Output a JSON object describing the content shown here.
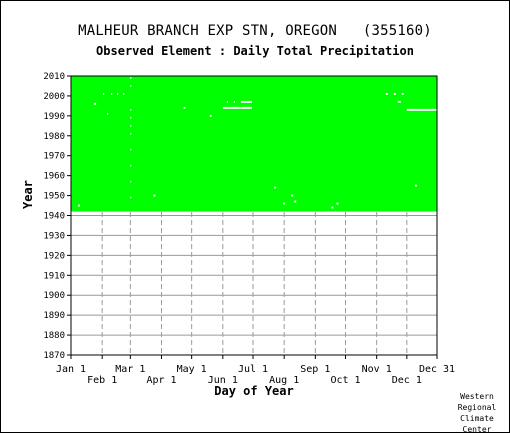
{
  "title": "MALHEUR BRANCH EXP STN, OREGON   (355160)",
  "subtitle": "Observed Element : Daily Total Precipitation",
  "credit": [
    "Western",
    "Regional",
    "Climate",
    "Center"
  ],
  "colors": {
    "data_fill": "#00ff00",
    "missing": "#ffffff",
    "grid": "#999999",
    "axis": "#000000",
    "background": "#ffffff"
  },
  "chart_data": {
    "type": "heatmap",
    "title": "MALHEUR BRANCH EXP STN, OREGON   (355160)",
    "subtitle": "Observed Element : Daily Total Precipitation",
    "xlabel": "Day of Year",
    "ylabel": "Year",
    "xlim": [
      1,
      365
    ],
    "ylim": [
      1870,
      2010
    ],
    "yticks": [
      1870,
      1880,
      1890,
      1900,
      1910,
      1920,
      1930,
      1940,
      1950,
      1960,
      1970,
      1980,
      1990,
      2000,
      2010
    ],
    "xticks": [
      {
        "label": "Jan 1",
        "day": 1,
        "row": "top"
      },
      {
        "label": "Feb 1",
        "day": 32,
        "row": "bottom"
      },
      {
        "label": "Mar 1",
        "day": 60,
        "row": "top"
      },
      {
        "label": "Apr 1",
        "day": 91,
        "row": "bottom"
      },
      {
        "label": "May 1",
        "day": 121,
        "row": "top"
      },
      {
        "label": "Jun 1",
        "day": 152,
        "row": "bottom"
      },
      {
        "label": "Jul 1",
        "day": 182,
        "row": "top"
      },
      {
        "label": "Aug 1",
        "day": 213,
        "row": "bottom"
      },
      {
        "label": "Sep 1",
        "day": 244,
        "row": "top"
      },
      {
        "label": "Oct 1",
        "day": 274,
        "row": "bottom"
      },
      {
        "label": "Nov 1",
        "day": 305,
        "row": "top"
      },
      {
        "label": "Dec 1",
        "day": 335,
        "row": "bottom"
      },
      {
        "label": "Dec 31",
        "day": 365,
        "row": "top"
      }
    ],
    "grid": true,
    "record": {
      "start_year": 1942,
      "end_year": 2010,
      "status": "observed"
    },
    "missing": [
      {
        "year": 2001,
        "day_start": 33,
        "day_end": 34
      },
      {
        "year": 2001,
        "day_start": 41,
        "day_end": 42
      },
      {
        "year": 2001,
        "day_start": 47,
        "day_end": 48
      },
      {
        "year": 2001,
        "day_start": 53,
        "day_end": 54
      },
      {
        "year": 1996,
        "day_start": 24,
        "day_end": 26
      },
      {
        "year": 1997,
        "day_start": 156,
        "day_end": 157
      },
      {
        "year": 1997,
        "day_start": 163,
        "day_end": 164
      },
      {
        "year": 1997,
        "day_start": 170,
        "day_end": 181
      },
      {
        "year": 1994,
        "day_start": 152,
        "day_end": 181
      },
      {
        "year": 1994,
        "day_start": 113,
        "day_end": 115
      },
      {
        "year": 1990,
        "day_start": 139,
        "day_end": 141
      },
      {
        "year": 2001,
        "day_start": 314,
        "day_end": 316
      },
      {
        "year": 2001,
        "day_start": 322,
        "day_end": 324
      },
      {
        "year": 2001,
        "day_start": 330,
        "day_end": 332
      },
      {
        "year": 1997,
        "day_start": 326,
        "day_end": 329
      },
      {
        "year": 1993,
        "day_start": 335,
        "day_end": 365
      },
      {
        "year": 1991,
        "day_start": 37,
        "day_end": 38
      },
      {
        "year": 1950,
        "day_start": 83,
        "day_end": 85
      },
      {
        "year": 1945,
        "day_start": 8,
        "day_end": 10
      },
      {
        "year": 1954,
        "day_start": 203,
        "day_end": 205
      },
      {
        "year": 1946,
        "day_start": 212,
        "day_end": 214
      },
      {
        "year": 1950,
        "day_start": 220,
        "day_end": 222
      },
      {
        "year": 1947,
        "day_start": 223,
        "day_end": 225
      },
      {
        "year": 1944,
        "day_start": 260,
        "day_end": 262
      },
      {
        "year": 1946,
        "day_start": 265,
        "day_end": 267
      },
      {
        "year": 1955,
        "day_start": 343,
        "day_end": 345
      },
      {
        "year": 1949,
        "day_start": 60,
        "day_end": 61
      },
      {
        "year": 1957,
        "day_start": 60,
        "day_end": 61
      },
      {
        "year": 1965,
        "day_start": 60,
        "day_end": 61
      },
      {
        "year": 1973,
        "day_start": 60,
        "day_end": 61
      },
      {
        "year": 1981,
        "day_start": 60,
        "day_end": 61
      },
      {
        "year": 1985,
        "day_start": 60,
        "day_end": 61
      },
      {
        "year": 1989,
        "day_start": 60,
        "day_end": 61
      },
      {
        "year": 1993,
        "day_start": 60,
        "day_end": 61
      },
      {
        "year": 2005,
        "day_start": 60,
        "day_end": 61
      },
      {
        "year": 2009,
        "day_start": 60,
        "day_end": 61
      }
    ]
  }
}
